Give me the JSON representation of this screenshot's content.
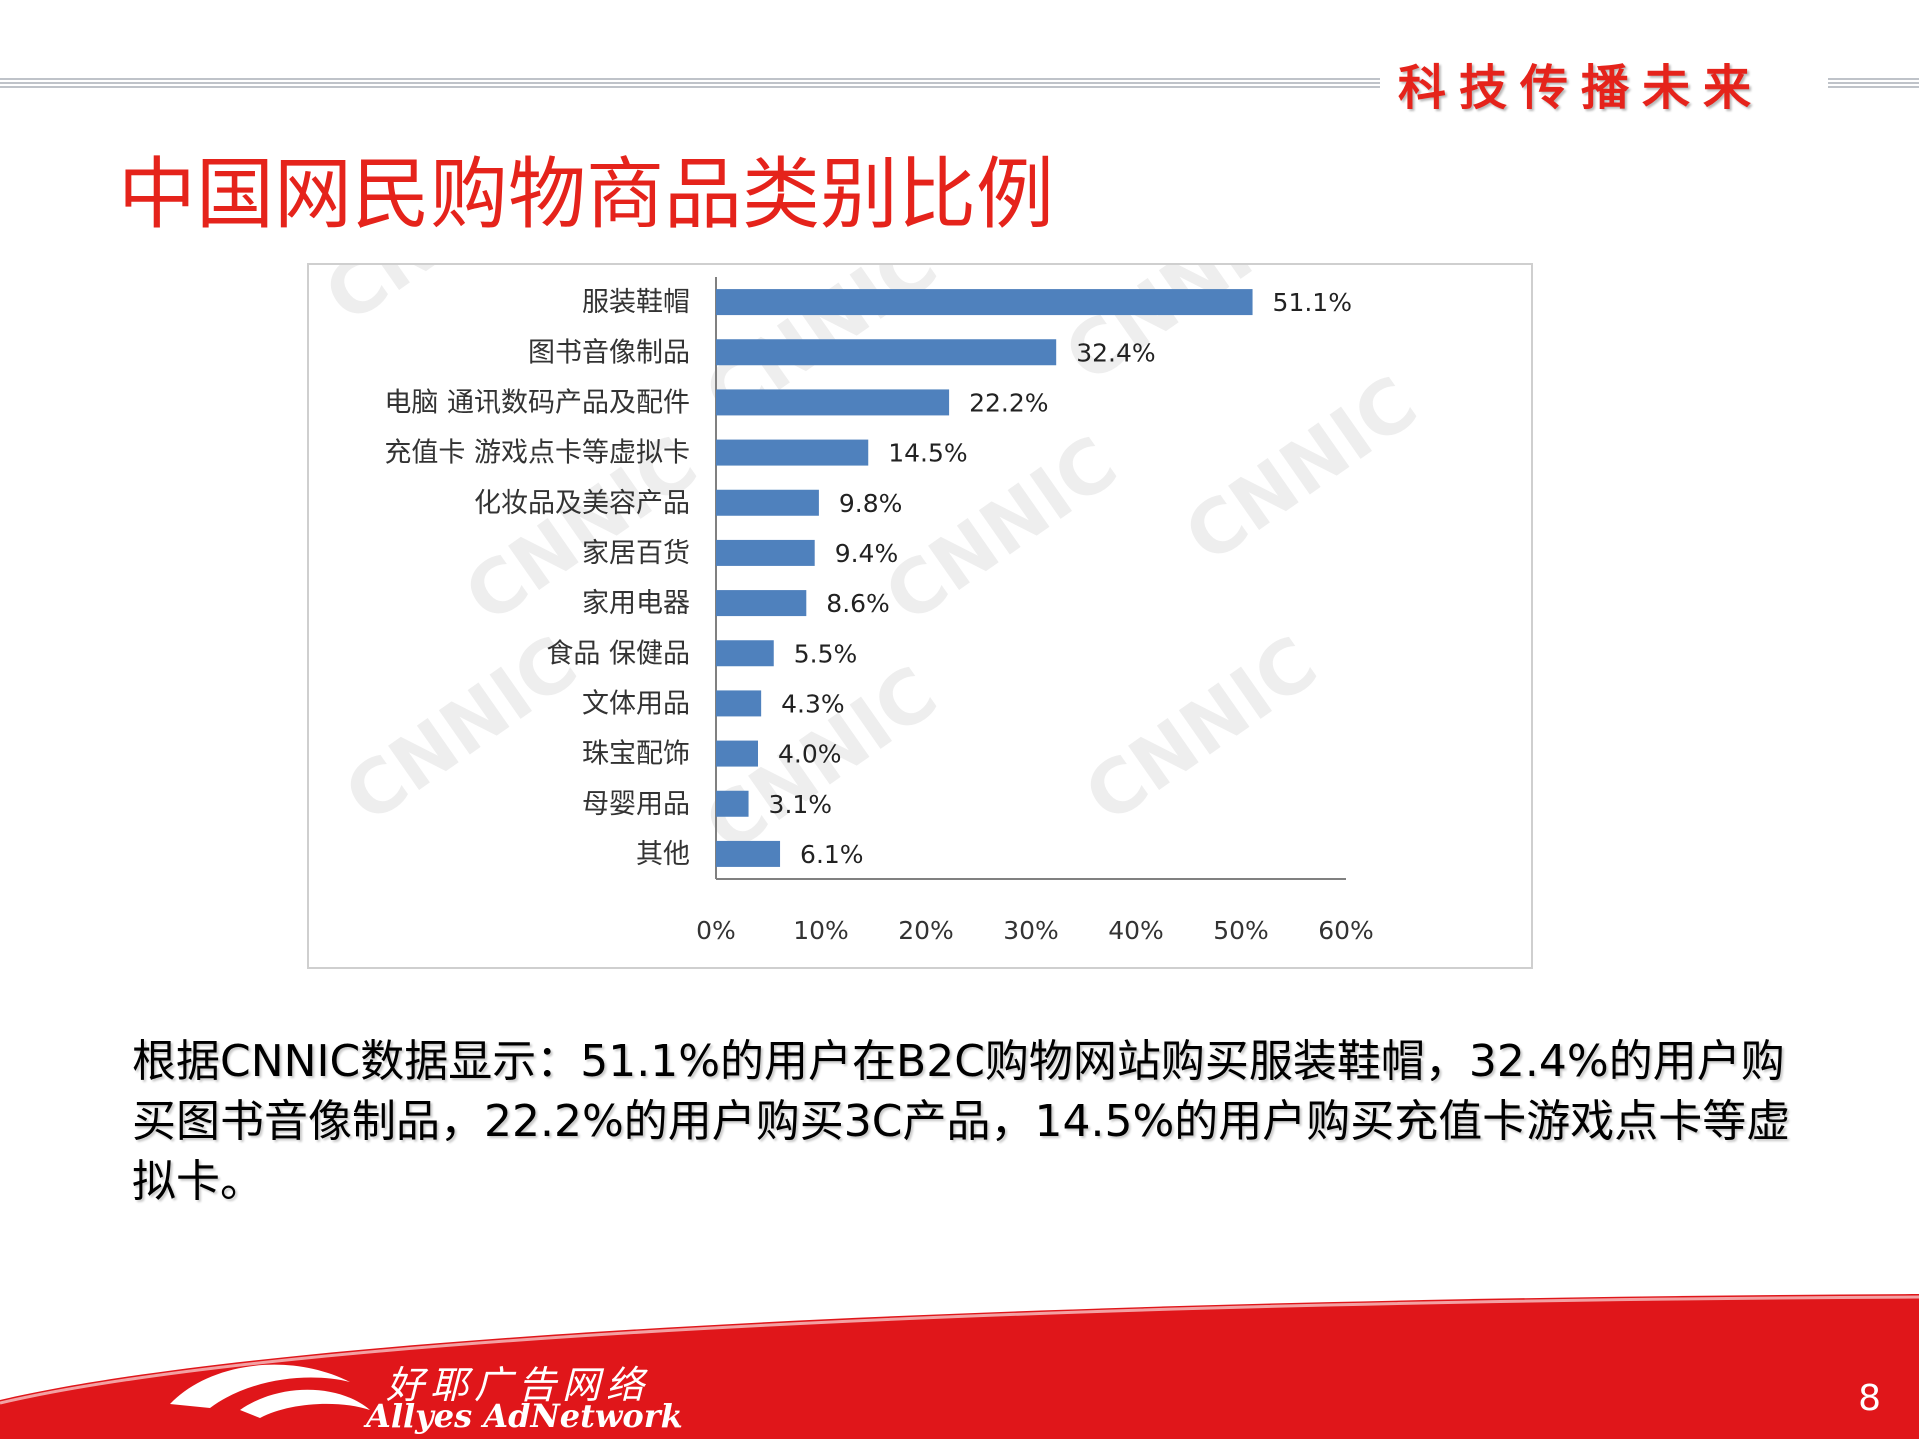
{
  "header": {
    "tagline": "科技传播未来",
    "title": "中国网民购物商品类别比例"
  },
  "chart_data": {
    "type": "bar",
    "orientation": "horizontal",
    "categories": [
      "服装鞋帽",
      "图书音像制品",
      "电脑 通讯数码产品及配件",
      "充值卡 游戏点卡等虚拟卡",
      "化妆品及美容产品",
      "家居百货",
      "家用电器",
      "食品 保健品",
      "文体用品",
      "珠宝配饰",
      "母婴用品",
      "其他"
    ],
    "values": [
      51.1,
      32.4,
      22.2,
      14.5,
      9.8,
      9.4,
      8.6,
      5.5,
      4.3,
      4.0,
      3.1,
      6.1
    ],
    "value_labels": [
      "51.1%",
      "32.4%",
      "22.2%",
      "14.5%",
      "9.8%",
      "9.4%",
      "8.6%",
      "5.5%",
      "4.3%",
      "4.0%",
      "3.1%",
      "6.1%"
    ],
    "x_ticks": [
      "0%",
      "10%",
      "20%",
      "30%",
      "40%",
      "50%",
      "60%"
    ],
    "xlim": [
      0,
      60
    ],
    "bar_color": "#4f81bd",
    "grid": false,
    "watermark": "CNNIC"
  },
  "summary": "根据CNNIC数据显示：51.1%的用户在B2C购物网站购买服装鞋帽，32.4%的用户购买图书音像制品，22.2%的用户购买3C产品，14.5%的用户购买充值卡游戏点卡等虚拟卡。",
  "footer": {
    "brand_cn": "好耶广告网络",
    "brand_en": "Allyes AdNetwork",
    "page_number": "8"
  },
  "colors": {
    "accent": "#e5231b",
    "footer_red": "#e0161a"
  }
}
